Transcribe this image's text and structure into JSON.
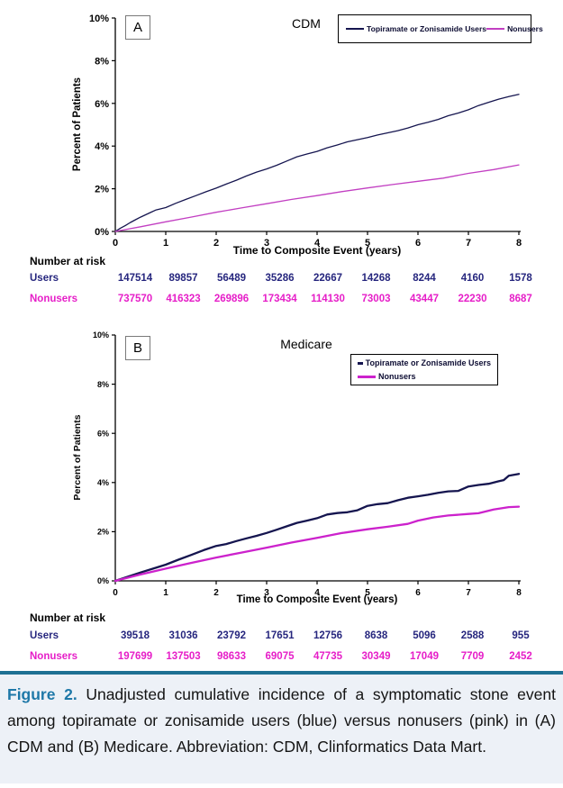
{
  "caption": {
    "label": "Figure 2.",
    "text": "Unadjusted cumulative incidence of a symptomatic stone event among topiramate or zonisamide users (blue) versus nonusers (pink) in (A) CDM and (B) Medicare. Abbreviation: CDM, Clinformatics Data Mart.",
    "label_color": "#1e78a8",
    "bar_color": "#1e7093",
    "background": "#edf1f7"
  },
  "chart_data": [
    {
      "type": "line",
      "panel_label": "A",
      "title": "CDM",
      "xlabel": "Time to Composite Event (years)",
      "ylabel": "Percent of Patients",
      "xlim": [
        0,
        8
      ],
      "ylim": [
        0,
        10
      ],
      "xticks": [
        "0",
        "1",
        "2",
        "3",
        "4",
        "5",
        "6",
        "7",
        "8"
      ],
      "yticks": [
        "0%",
        "2%",
        "4%",
        "6%",
        "8%",
        "10%"
      ],
      "legend_position": "top-right-horizontal",
      "series": [
        {
          "name": "Topiramate or Zonisamide Users",
          "color": "#15154f",
          "x": [
            0,
            0.1,
            0.2,
            0.3,
            0.4,
            0.5,
            0.6,
            0.7,
            0.8,
            0.9,
            1,
            1.2,
            1.4,
            1.6,
            1.8,
            2,
            2.2,
            2.4,
            2.6,
            2.8,
            3,
            3.2,
            3.4,
            3.6,
            3.8,
            4,
            4.2,
            4.4,
            4.6,
            4.8,
            5,
            5.2,
            5.4,
            5.6,
            5.8,
            6,
            6.2,
            6.4,
            6.6,
            6.8,
            7,
            7.2,
            7.4,
            7.6,
            7.8,
            8
          ],
          "y": [
            0,
            0.15,
            0.28,
            0.42,
            0.55,
            0.67,
            0.78,
            0.89,
            1.0,
            1.06,
            1.12,
            1.32,
            1.5,
            1.68,
            1.86,
            2.03,
            2.22,
            2.4,
            2.6,
            2.78,
            2.93,
            3.1,
            3.3,
            3.5,
            3.63,
            3.75,
            3.92,
            4.05,
            4.2,
            4.3,
            4.4,
            4.52,
            4.62,
            4.72,
            4.85,
            5.0,
            5.12,
            5.25,
            5.42,
            5.55,
            5.7,
            5.9,
            6.05,
            6.2,
            6.32,
            6.42
          ]
        },
        {
          "name": "Nonusers",
          "color": "#c23fc2",
          "x": [
            0,
            0.5,
            1,
            1.5,
            2,
            2.5,
            3,
            3.5,
            4,
            4.5,
            5,
            5.5,
            6,
            6.5,
            7,
            7.5,
            8
          ],
          "y": [
            0,
            0.22,
            0.45,
            0.67,
            0.9,
            1.1,
            1.3,
            1.5,
            1.68,
            1.87,
            2.04,
            2.2,
            2.35,
            2.5,
            2.72,
            2.9,
            3.12
          ]
        }
      ],
      "number_at_risk": {
        "label": "Number at risk",
        "rows": [
          {
            "name": "Users",
            "color": "#26267e",
            "values": [
              "147514",
              "89857",
              "56489",
              "35286",
              "22667",
              "14268",
              "8244",
              "4160",
              "1578"
            ]
          },
          {
            "name": "Nonusers",
            "color": "#e61ec8",
            "values": [
              "737570",
              "416323",
              "269896",
              "173434",
              "114130",
              "73003",
              "43447",
              "22230",
              "8687"
            ]
          }
        ]
      }
    },
    {
      "type": "line",
      "panel_label": "B",
      "title": "Medicare",
      "xlabel": "Time to Composite Event (years)",
      "ylabel": "Percent of Patients",
      "xlim": [
        0,
        8
      ],
      "ylim": [
        0,
        10
      ],
      "xticks": [
        "0",
        "1",
        "2",
        "3",
        "4",
        "5",
        "6",
        "7",
        "8"
      ],
      "yticks": [
        "0%",
        "2%",
        "4%",
        "6%",
        "8%",
        "10%"
      ],
      "legend_position": "top-right-stacked",
      "series": [
        {
          "name": "Topiramate or Zonisamide Users",
          "color": "#15154f",
          "x": [
            0,
            0.25,
            0.5,
            0.75,
            1,
            1.25,
            1.5,
            1.75,
            2,
            2.2,
            2.4,
            2.6,
            2.8,
            3,
            3.2,
            3.4,
            3.6,
            3.8,
            4,
            4.2,
            4.4,
            4.6,
            4.8,
            5,
            5.2,
            5.4,
            5.6,
            5.8,
            6,
            6.2,
            6.4,
            6.6,
            6.8,
            7,
            7.2,
            7.4,
            7.6,
            7.7,
            7.8,
            8
          ],
          "y": [
            0,
            0.17,
            0.34,
            0.5,
            0.66,
            0.86,
            1.05,
            1.25,
            1.42,
            1.5,
            1.62,
            1.73,
            1.83,
            1.95,
            2.08,
            2.22,
            2.36,
            2.45,
            2.55,
            2.7,
            2.76,
            2.79,
            2.87,
            3.05,
            3.12,
            3.16,
            3.28,
            3.38,
            3.44,
            3.5,
            3.58,
            3.64,
            3.66,
            3.84,
            3.9,
            3.95,
            4.05,
            4.1,
            4.28,
            4.35
          ]
        },
        {
          "name": "Nonusers",
          "color": "#cc22cc",
          "x": [
            0,
            0.5,
            1,
            1.5,
            2,
            2.5,
            3,
            3.5,
            4,
            4.5,
            5,
            5.4,
            5.8,
            6,
            6.3,
            6.6,
            7,
            7.2,
            7.5,
            7.8,
            8
          ],
          "y": [
            0,
            0.26,
            0.5,
            0.73,
            0.95,
            1.15,
            1.35,
            1.56,
            1.75,
            1.95,
            2.1,
            2.2,
            2.32,
            2.45,
            2.58,
            2.66,
            2.72,
            2.75,
            2.9,
            3.0,
            3.02
          ]
        }
      ],
      "number_at_risk": {
        "label": "Number at risk",
        "rows": [
          {
            "name": "Users",
            "color": "#26267e",
            "values": [
              "39518",
              "31036",
              "23792",
              "17651",
              "12756",
              "8638",
              "5096",
              "2588",
              "955"
            ]
          },
          {
            "name": "Nonusers",
            "color": "#e61ec8",
            "values": [
              "197699",
              "137503",
              "98633",
              "69075",
              "47735",
              "30349",
              "17049",
              "7709",
              "2452"
            ]
          }
        ]
      }
    }
  ]
}
